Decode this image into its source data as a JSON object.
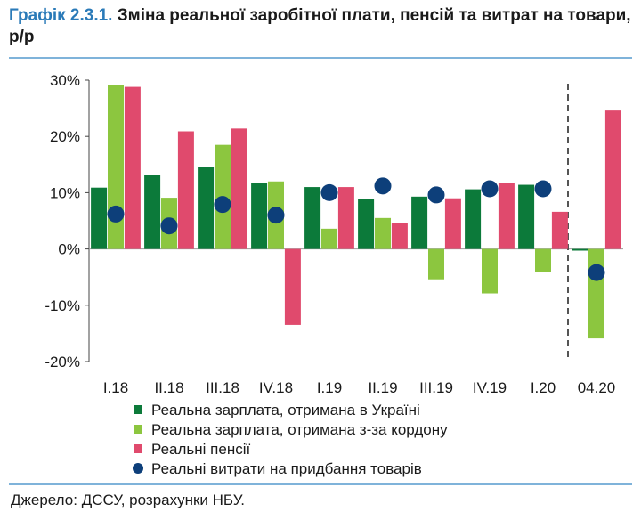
{
  "header": {
    "title_prefix": "Графік 2.3.1.",
    "title_text": " Зміна реальної заробітної плати, пенсій та витрат на товари, р/р"
  },
  "footer": {
    "source": "Джерело: ДССУ, розрахунки НБУ."
  },
  "chart_data": {
    "type": "bar",
    "categories": [
      "I.18",
      "II.18",
      "III.18",
      "IV.18",
      "I.19",
      "II.19",
      "III.19",
      "IV.19",
      "I.20",
      "04.20"
    ],
    "ylim": [
      -20,
      30
    ],
    "yticks": [
      -20,
      -10,
      0,
      10,
      20,
      30
    ],
    "ytick_labels": [
      "-20%",
      "-10%",
      "0%",
      "10%",
      "20%",
      "30%"
    ],
    "grid": false,
    "separator_before_category": "04.20",
    "legend_position": "bottom",
    "series": [
      {
        "name": "Реальна зарплата, отримана в Україні",
        "kind": "bar",
        "color": "#0c7a3a",
        "values": [
          10.9,
          13.2,
          14.6,
          11.7,
          11.0,
          8.8,
          9.3,
          10.6,
          11.4,
          -0.3
        ]
      },
      {
        "name": "Реальна зарплата, отримана з-за кордону",
        "kind": "bar",
        "color": "#8cc63f",
        "values": [
          29.2,
          9.1,
          18.5,
          12.0,
          3.6,
          5.5,
          -5.4,
          -7.9,
          -4.1,
          -15.9
        ]
      },
      {
        "name": "Реальні пенсії",
        "kind": "bar",
        "color": "#e04a6d",
        "values": [
          28.8,
          20.9,
          21.4,
          -13.5,
          11.0,
          4.6,
          9.0,
          11.8,
          6.6,
          24.6
        ]
      },
      {
        "name": "Реальні витрати на придбання товарів",
        "kind": "dot",
        "color": "#0d3f7a",
        "values": [
          6.2,
          4.1,
          7.9,
          6.0,
          10.0,
          11.2,
          9.6,
          10.7,
          10.7,
          -4.2
        ]
      }
    ]
  }
}
